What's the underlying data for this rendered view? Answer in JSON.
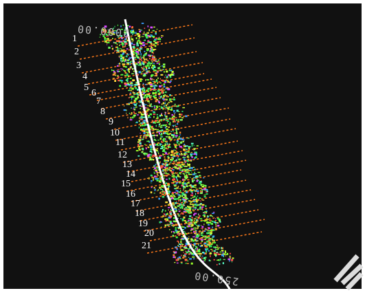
{
  "scale_labels": {
    "top": "2000.00",
    "bottom": "250.00"
  },
  "markers": [
    "1",
    "2",
    "3",
    "4",
    "5",
    "6",
    "7",
    "8",
    "9",
    "10",
    "11",
    "12",
    "13",
    "14",
    "15",
    "16",
    "17",
    "18",
    "19",
    "20",
    "21"
  ]
}
